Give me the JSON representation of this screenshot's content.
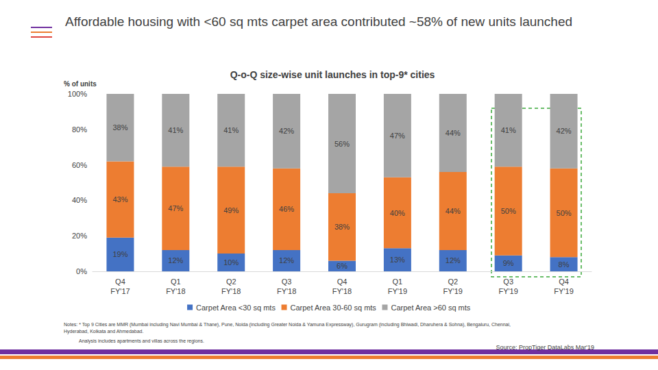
{
  "chart_data": {
    "type": "bar",
    "title": "Affordable housing with <60 sq mts carpet area contributed ~58% of new units launched",
    "subtitle": "Q-o-Q size-wise unit launches in top-9* cities",
    "y_label": "% of units",
    "notes": [
      "Notes: * Top 9 Cities are MMR (Mumbai including Navi Mumbai & Thane), Pune, Noida (including Greater Noida & Yamuna Expressway), Gurugram (including Bhiwadi, Dharuhera & Sohna), Bengaluru, Chennai, Hyderabad, Kolkata and Ahmedabad.",
      "Analysis includes apartments and villas across the regions."
    ],
    "source": "Source: PropTiger DataLabs Mar'19",
    "categories": [
      "Q4 FY'17",
      "Q1 FY'18",
      "Q2 FY'18",
      "Q3 FY'18",
      "Q4 FY'18",
      "Q1 FY'19",
      "Q2 FY'19",
      "Q3 FY'19",
      "Q4 FY'19"
    ],
    "series": [
      {
        "name": "Carpet Area <30 sq mts",
        "color": "#4472c4",
        "values": [
          19,
          12,
          10,
          12,
          6,
          13,
          12,
          9,
          8
        ],
        "value_labels": [
          "19%",
          "12%",
          "10%",
          "12%",
          "6%",
          "13%",
          "12%",
          "9%",
          "8%"
        ]
      },
      {
        "name": "Carpet Area 30-60 sq mts",
        "color": "#ed7d31",
        "values": [
          43,
          47,
          49,
          46,
          38,
          40,
          44,
          50,
          50
        ],
        "value_labels": [
          "43%",
          "47%",
          "49%",
          "46%",
          "38%",
          "40%",
          "44%",
          "50%",
          "50%"
        ]
      },
      {
        "name": "Carpet Area >60 sq mts",
        "color": "#a5a5a5",
        "values": [
          38,
          41,
          41,
          42,
          56,
          47,
          44,
          41,
          42
        ],
        "value_labels": [
          "38%",
          "41%",
          "41%",
          "42%",
          "56%",
          "47%",
          "44%",
          "41%",
          "42%"
        ]
      }
    ],
    "ylim": [
      0,
      100
    ],
    "yticks": [
      {
        "value": 0,
        "label": "0%"
      },
      {
        "value": 20,
        "label": "20%"
      },
      {
        "value": 40,
        "label": "40%"
      },
      {
        "value": 60,
        "label": "60%"
      },
      {
        "value": 80,
        "label": "80%"
      },
      {
        "value": 100,
        "label": "100%"
      }
    ],
    "stacked": true,
    "data_labels": true,
    "grid": false,
    "legend": "bottom"
  }
}
